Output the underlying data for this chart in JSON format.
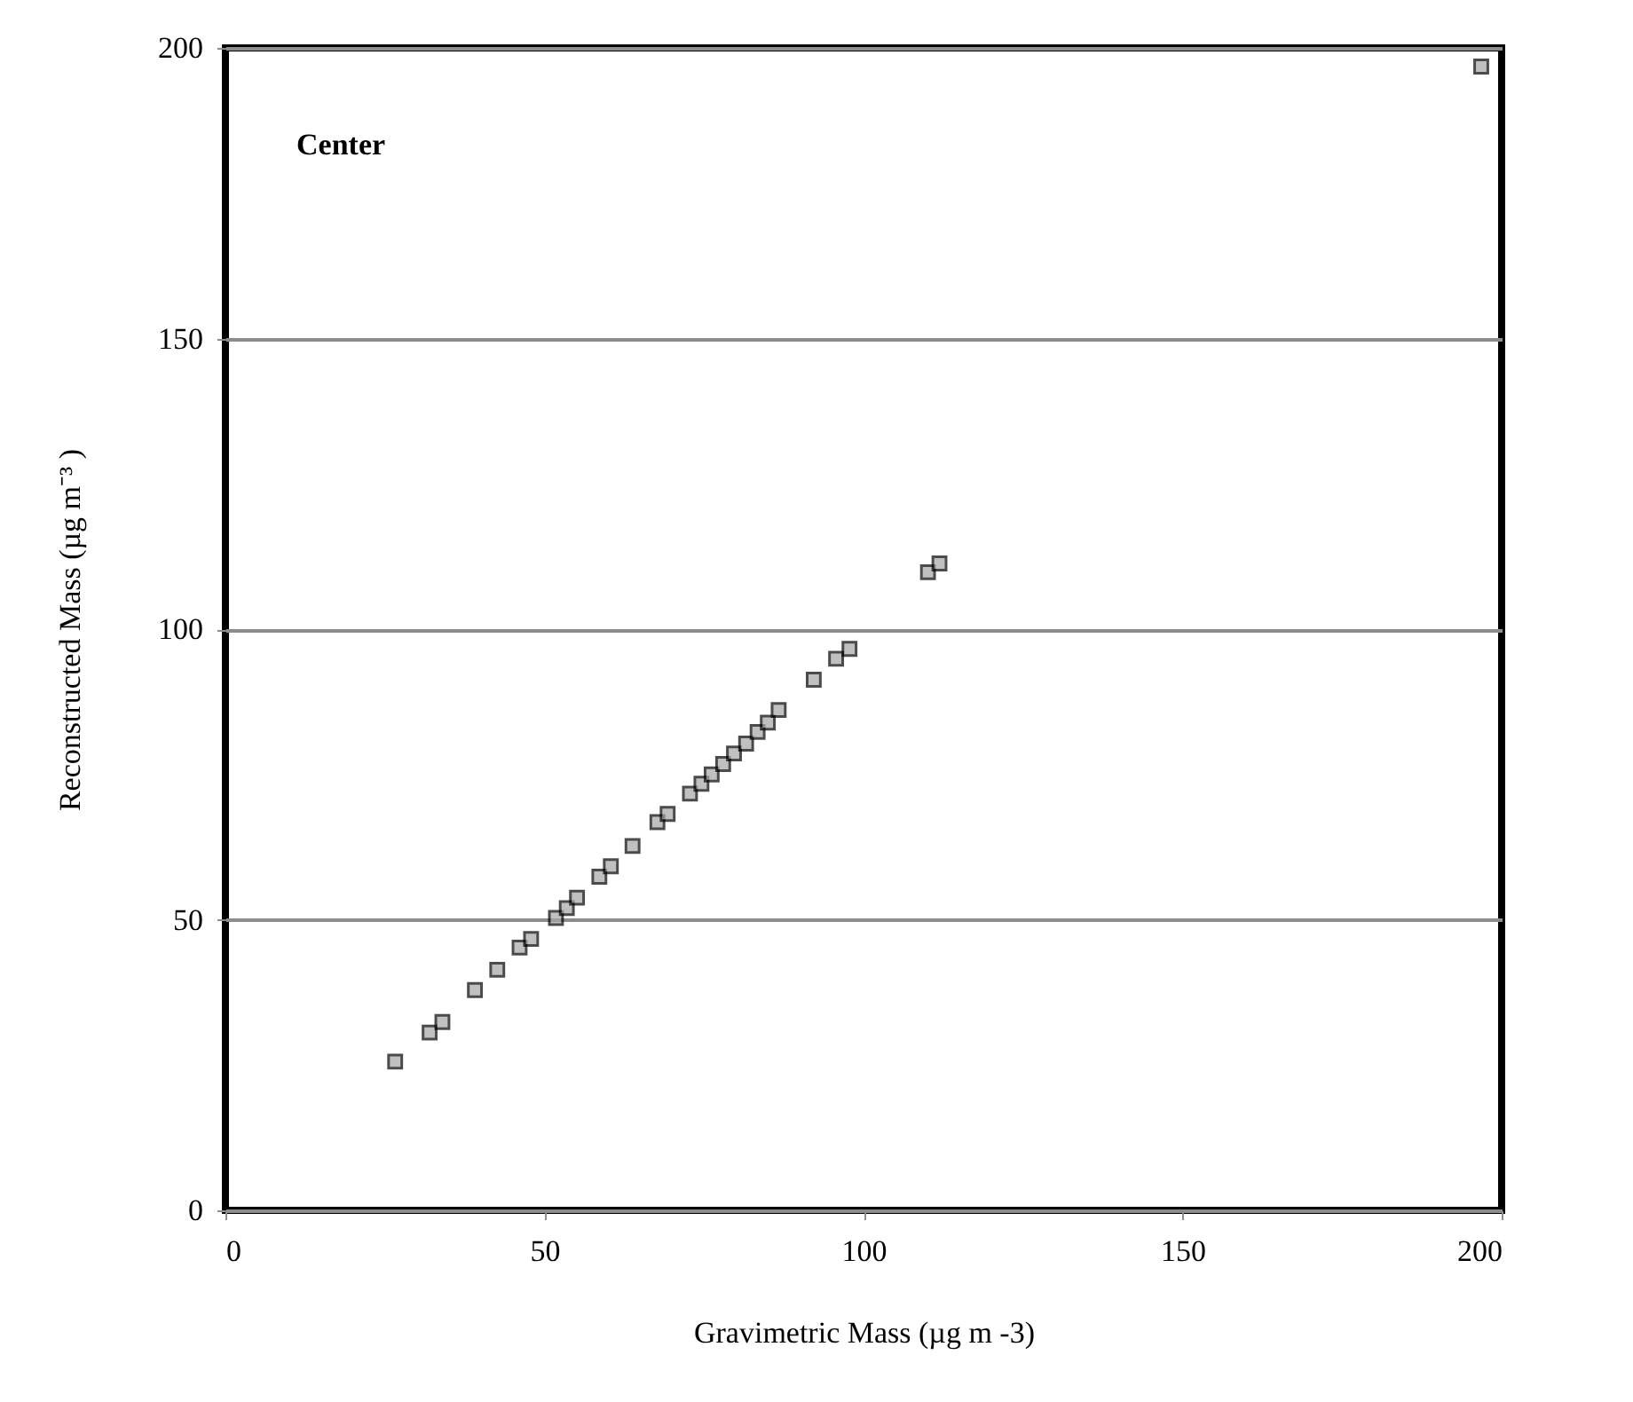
{
  "chart_data": {
    "type": "scatter",
    "xlabel": "Gravimetric Mass (µg m -3)",
    "ylabel": "Reconstructed Mass (µg m⁻³ )",
    "annotations": [
      "Center"
    ],
    "x": [
      26.6,
      32.0,
      34.0,
      39.1,
      42.6,
      46.1,
      47.9,
      51.8,
      53.5,
      55.1,
      58.6,
      60.4,
      63.8,
      67.7,
      69.3,
      72.8,
      74.6,
      76.2,
      78.0,
      79.7,
      81.6,
      83.4,
      85.0,
      86.7,
      92.2,
      95.7,
      97.8,
      110.1,
      111.9,
      196.8
    ],
    "values": [
      25.6,
      30.6,
      32.4,
      37.9,
      41.4,
      45.2,
      46.7,
      50.3,
      52.0,
      53.8,
      57.4,
      59.2,
      62.7,
      66.8,
      68.2,
      71.7,
      73.4,
      75.0,
      76.8,
      78.6,
      80.3,
      82.3,
      83.9,
      86.1,
      91.3,
      94.9,
      96.6,
      109.8,
      111.3,
      196.8
    ],
    "color": "#a6a6a6",
    "marker": "square",
    "xlim": [
      0,
      200
    ],
    "ylim": [
      0,
      200
    ],
    "xticks": [
      0,
      50,
      100,
      150,
      200
    ],
    "yticks": [
      0,
      50,
      100,
      150,
      200
    ],
    "grid": "y"
  }
}
